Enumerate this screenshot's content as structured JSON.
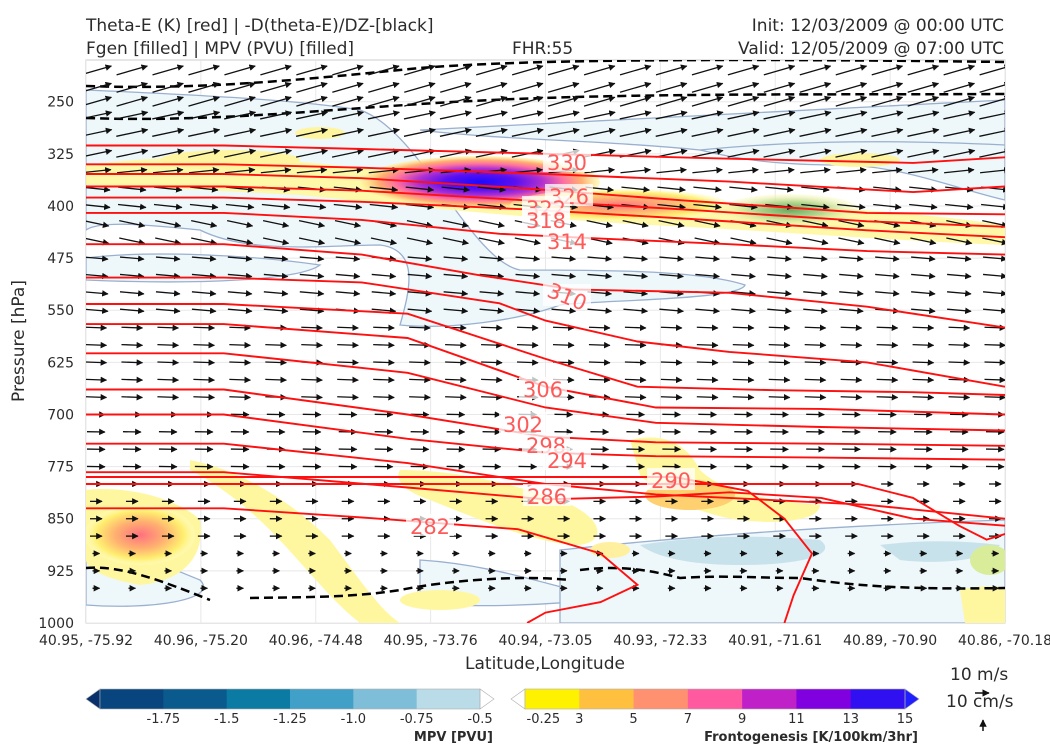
{
  "header": {
    "line1_left": "Theta-E (K) [red] | -D(theta-E)/DZ-[black]",
    "line2_left": "Fgen [filled] | MPV (PVU) [filled]",
    "fhr": "FHR:55",
    "init": "Init: 12/03/2009 @ 00:00 UTC",
    "valid": "Valid: 12/05/2009 @ 07:00 UTC"
  },
  "chart_data": {
    "type": "cross-section (contour + filled contour + vectors)",
    "xlabel": "Latitude,Longitude",
    "ylabel": "Pressure [hPa]",
    "x_ticks": [
      "40.95, -75.92",
      "40.96, -75.20",
      "40.96, -74.48",
      "40.95, -73.76",
      "40.94, -73.05",
      "40.93, -72.33",
      "40.91, -71.61",
      "40.89, -70.90",
      "40.86, -70.18"
    ],
    "y_ticks": [
      250,
      325,
      400,
      475,
      550,
      625,
      700,
      775,
      850,
      925,
      1000
    ],
    "ylim": [
      1000,
      190
    ],
    "grid": true,
    "theta_e_contours": [
      {
        "label": "330",
        "pressure_at_label": 348
      },
      {
        "label": "326",
        "pressure_at_label": 397
      },
      {
        "label": "322",
        "pressure_at_label": 408
      },
      {
        "label": "318",
        "pressure_at_label": 420
      },
      {
        "label": "314",
        "pressure_at_label": 438
      },
      {
        "label": "310",
        "pressure_at_label": 533
      },
      {
        "label": "306",
        "pressure_at_label": 677
      },
      {
        "label": "302",
        "pressure_at_label": 714
      },
      {
        "label": "298",
        "pressure_at_label": 742
      },
      {
        "label": "294",
        "pressure_at_label": 762
      },
      {
        "label": "290",
        "pressure_at_label": 800
      },
      {
        "label": "286",
        "pressure_at_label": 822
      },
      {
        "label": "282",
        "pressure_at_label": 862
      }
    ],
    "fgen_max_region": {
      "lon_index_center": 3.4,
      "pressure": 372,
      "value_max": 15
    },
    "vector_scale": {
      "horizontal": "10 m/s",
      "vertical": "10 cm/s"
    },
    "colorbars": [
      {
        "label": "MPV [PVU]",
        "ticks": [
          "-1.75",
          "-1.5",
          "-1.25",
          "-1.0",
          "-0.75",
          "-0.5",
          "-0.25"
        ],
        "colors": [
          "#08306b",
          "#08457e",
          "#0a5a8e",
          "#0c7ba3",
          "#40a0c8",
          "#7fbed8",
          "#b9dce8",
          "#ffffff"
        ]
      },
      {
        "label": "Frontogenesis [K/100km/3hr]",
        "ticks": [
          "3",
          "5",
          "7",
          "9",
          "11",
          "13",
          "15"
        ],
        "colors": [
          "#ffffff",
          "#fff200",
          "#ffc040",
          "#ff9070",
          "#ff5aa0",
          "#c020c8",
          "#8000e0",
          "#3010f0",
          "#2020ff"
        ]
      }
    ]
  },
  "colors": {
    "theta_e": "#ff1010",
    "label": "#ff5a5a",
    "dthetadz": "#000000",
    "mpv_outline": "#9ab0d0",
    "mpv_light": "#eef7fa"
  }
}
